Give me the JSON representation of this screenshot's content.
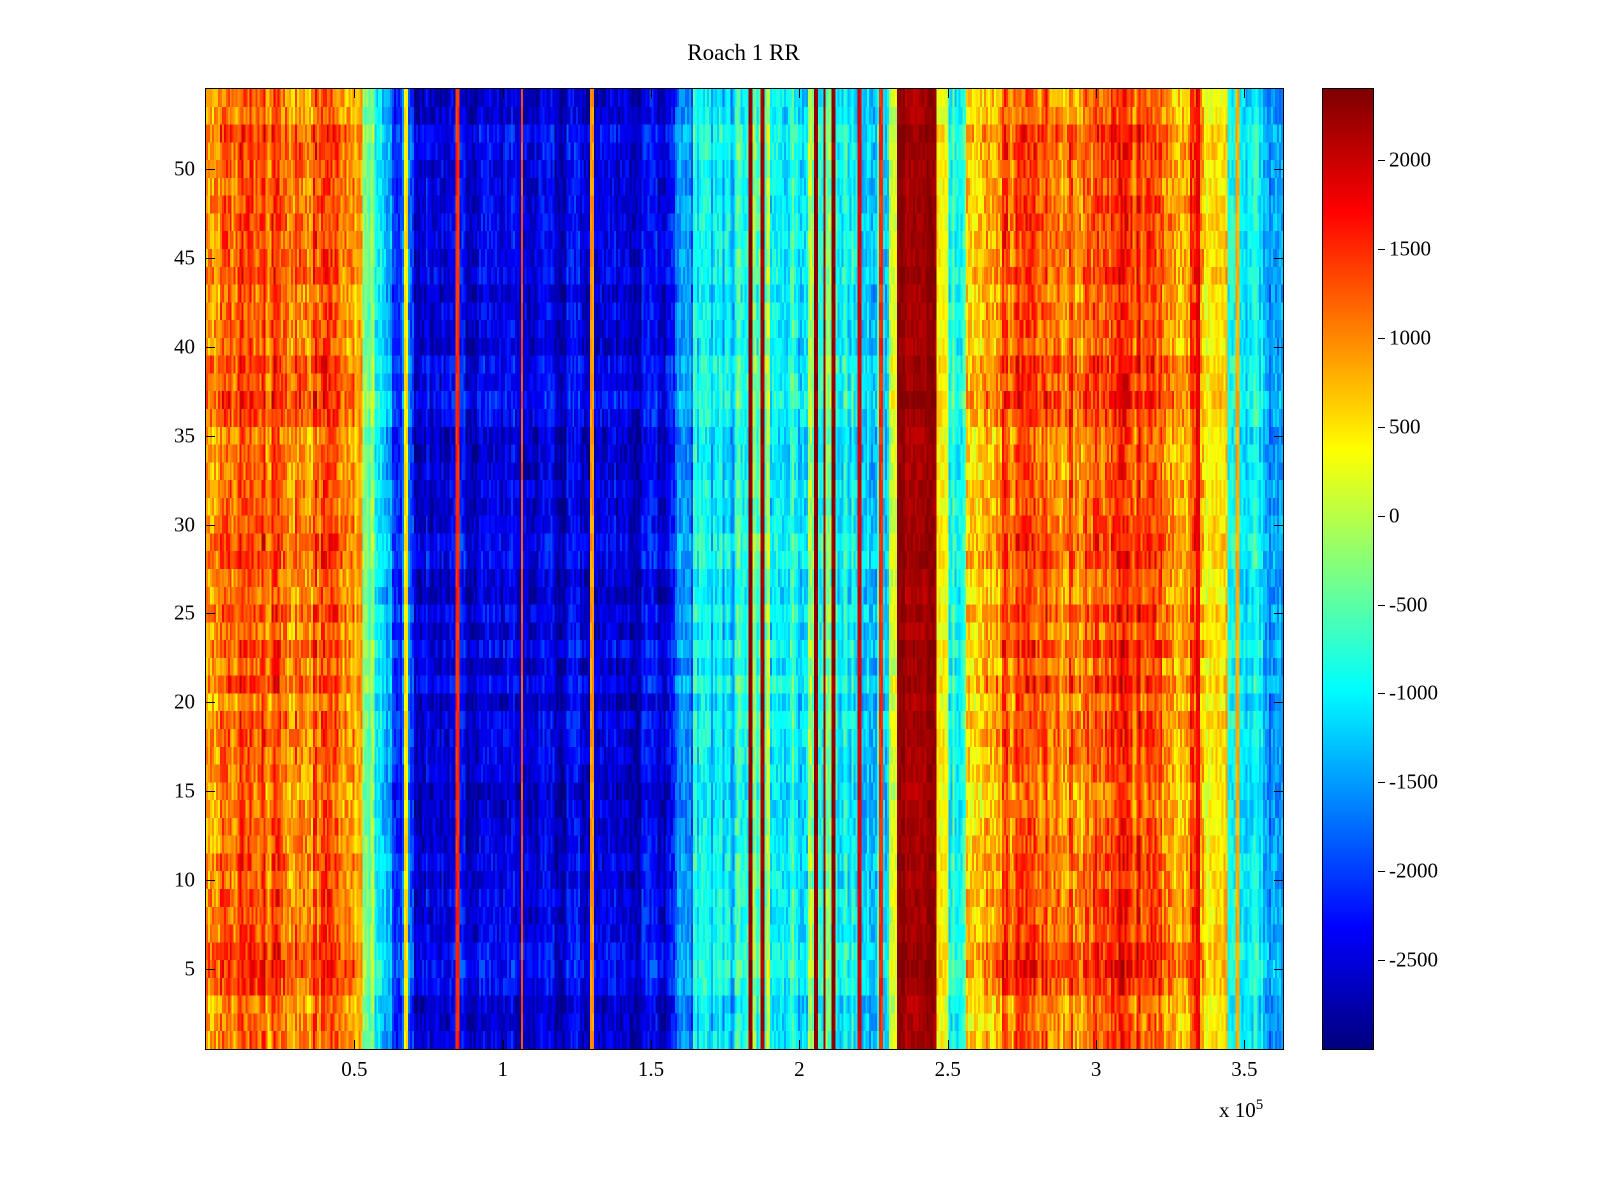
{
  "figure": {
    "title": "Roach 1 RR",
    "x_scale_prefix": "x 10",
    "x_scale_exponent": "5"
  },
  "chart_data": {
    "type": "heatmap",
    "title": "Roach 1 RR",
    "colormap": "jet",
    "grid_on": false,
    "legend": "colorbar-right",
    "x_axis": {
      "units": "1e5",
      "range_1e5": [
        0,
        3.63
      ],
      "ticks": [
        {
          "v": 0.5,
          "label": "0.5"
        },
        {
          "v": 1.0,
          "label": "1"
        },
        {
          "v": 1.5,
          "label": "1.5"
        },
        {
          "v": 2.0,
          "label": "2"
        },
        {
          "v": 2.5,
          "label": "2.5"
        },
        {
          "v": 3.0,
          "label": "3"
        },
        {
          "v": 3.5,
          "label": "3.5"
        }
      ],
      "scale_label": "x 10^5"
    },
    "y_axis": {
      "range": [
        0.5,
        54.5
      ],
      "ticks": [
        {
          "v": 5,
          "label": "5"
        },
        {
          "v": 10,
          "label": "10"
        },
        {
          "v": 15,
          "label": "15"
        },
        {
          "v": 20,
          "label": "20"
        },
        {
          "v": 25,
          "label": "25"
        },
        {
          "v": 30,
          "label": "30"
        },
        {
          "v": 35,
          "label": "35"
        },
        {
          "v": 40,
          "label": "40"
        },
        {
          "v": 45,
          "label": "45"
        },
        {
          "v": 50,
          "label": "50"
        }
      ]
    },
    "color_axis": {
      "range": [
        -3000,
        2400
      ],
      "ticks": [
        {
          "v": 2000,
          "label": "2000"
        },
        {
          "v": 1500,
          "label": "1500"
        },
        {
          "v": 1000,
          "label": "1000"
        },
        {
          "v": 500,
          "label": "500"
        },
        {
          "v": 0,
          "label": "0"
        },
        {
          "v": -500,
          "label": "-500"
        },
        {
          "v": -1000,
          "label": "-1000"
        },
        {
          "v": -1500,
          "label": "-1500"
        },
        {
          "v": -2000,
          "label": "-2000"
        },
        {
          "v": -2500,
          "label": "-2500"
        }
      ]
    },
    "grid": {
      "rows": 54,
      "cols": 544
    },
    "seed": 1337,
    "bands": [
      {
        "x0": 0.0,
        "x1": 0.5,
        "mean": 1250,
        "col": 360,
        "cell": 430,
        "row": 260
      },
      {
        "x0": 0.5,
        "x1": 0.53,
        "mean": 750,
        "col": 250,
        "cell": 300,
        "row": 150
      },
      {
        "x0": 0.53,
        "x1": 0.57,
        "mean": -350,
        "col": 300,
        "cell": 300,
        "row": 150
      },
      {
        "x0": 0.57,
        "x1": 0.63,
        "mean": -1200,
        "col": 250,
        "cell": 300,
        "row": 180
      },
      {
        "x0": 0.63,
        "x1": 0.7,
        "mean": -1850,
        "col": 250,
        "cell": 300,
        "row": 180
      },
      {
        "x0": 0.7,
        "x1": 1.58,
        "mean": -2450,
        "col": 280,
        "cell": 330,
        "row": 200
      },
      {
        "x0": 1.58,
        "x1": 1.64,
        "mean": -1700,
        "col": 300,
        "cell": 300,
        "row": 180
      },
      {
        "x0": 1.64,
        "x1": 1.78,
        "mean": -1050,
        "col": 380,
        "cell": 320,
        "row": 180
      },
      {
        "x0": 1.78,
        "x1": 1.9,
        "mean": -350,
        "col": 500,
        "cell": 350,
        "row": 180
      },
      {
        "x0": 1.9,
        "x1": 2.03,
        "mean": -900,
        "col": 400,
        "cell": 320,
        "row": 180
      },
      {
        "x0": 2.03,
        "x1": 2.13,
        "mean": -550,
        "col": 600,
        "cell": 350,
        "row": 180
      },
      {
        "x0": 2.13,
        "x1": 2.3,
        "mean": -1000,
        "col": 400,
        "cell": 320,
        "row": 180
      },
      {
        "x0": 2.3,
        "x1": 2.33,
        "mean": 300,
        "col": 300,
        "cell": 300,
        "row": 150
      },
      {
        "x0": 2.33,
        "x1": 2.46,
        "mean": 2250,
        "col": 120,
        "cell": 140,
        "row": 80
      },
      {
        "x0": 2.46,
        "x1": 2.5,
        "mean": 550,
        "col": 250,
        "cell": 280,
        "row": 150
      },
      {
        "x0": 2.5,
        "x1": 2.56,
        "mean": -700,
        "col": 300,
        "cell": 300,
        "row": 150
      },
      {
        "x0": 2.56,
        "x1": 2.66,
        "mean": 1000,
        "col": 380,
        "cell": 420,
        "row": 240
      },
      {
        "x0": 2.66,
        "x1": 2.96,
        "mean": 1250,
        "col": 380,
        "cell": 430,
        "row": 250
      },
      {
        "x0": 2.96,
        "x1": 3.2,
        "mean": 1420,
        "col": 360,
        "cell": 420,
        "row": 250
      },
      {
        "x0": 3.2,
        "x1": 3.36,
        "mean": 1100,
        "col": 380,
        "cell": 430,
        "row": 250
      },
      {
        "x0": 3.36,
        "x1": 3.44,
        "mean": 650,
        "col": 280,
        "cell": 320,
        "row": 180
      },
      {
        "x0": 3.44,
        "x1": 3.56,
        "mean": -1000,
        "col": 300,
        "cell": 300,
        "row": 170
      },
      {
        "x0": 3.56,
        "x1": 3.63,
        "mean": -1450,
        "col": 280,
        "cell": 300,
        "row": 170
      }
    ],
    "stripes": [
      {
        "x": 0.675,
        "w": 0.006,
        "value": 500
      },
      {
        "x": 0.845,
        "w": 0.006,
        "value": 1500
      },
      {
        "x": 1.065,
        "w": 0.005,
        "value": 1300
      },
      {
        "x": 1.3,
        "w": 0.004,
        "value": 900
      },
      {
        "x": 1.835,
        "w": 0.008,
        "value": 2300
      },
      {
        "x": 1.875,
        "w": 0.006,
        "value": 2200
      },
      {
        "x": 2.055,
        "w": 0.008,
        "value": 2300
      },
      {
        "x": 2.085,
        "w": 0.006,
        "value": 2250
      },
      {
        "x": 2.115,
        "w": 0.007,
        "value": 2300
      },
      {
        "x": 2.205,
        "w": 0.006,
        "value": 1900
      },
      {
        "x": 2.275,
        "w": 0.005,
        "value": 1500
      },
      {
        "x": 3.345,
        "w": 0.006,
        "value": 1800
      },
      {
        "x": 3.475,
        "w": 0.005,
        "value": 800
      }
    ]
  }
}
